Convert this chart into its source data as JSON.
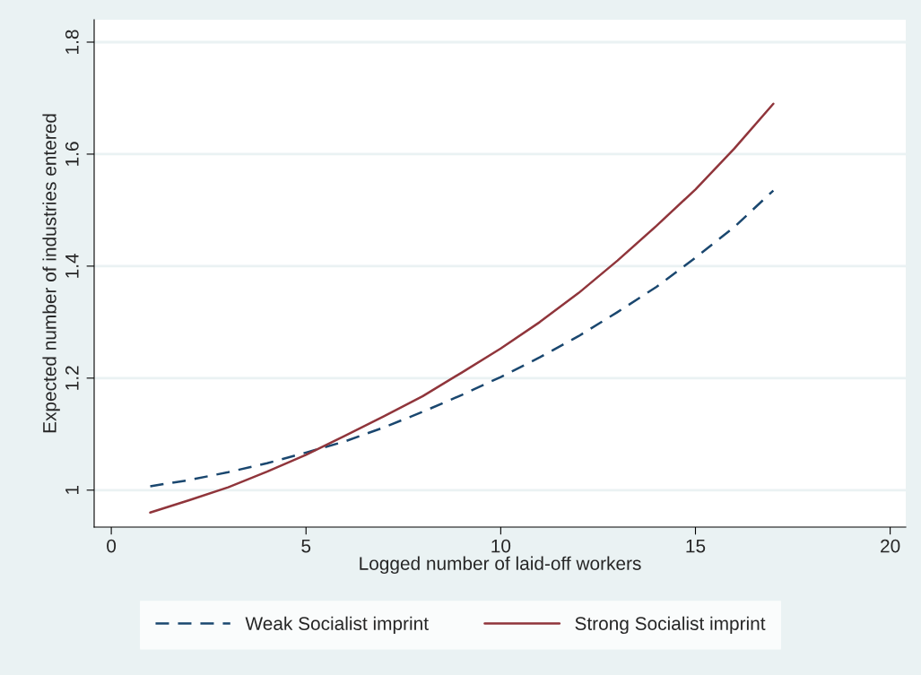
{
  "chart_data": {
    "type": "line",
    "xlabel": "Logged number of laid-off workers",
    "ylabel": "Expected number of industries entered",
    "xlim": [
      -0.44,
      20.4
    ],
    "xticks": [
      0,
      5,
      10,
      15,
      20
    ],
    "ylim": [
      0.934,
      1.84
    ],
    "yticks": [
      1,
      1.2,
      1.4,
      1.6,
      1.8
    ],
    "grid": "y",
    "legend": "bottom",
    "marker": "none",
    "series": [
      {
        "name": "Weak Socialist imprint",
        "color": "#1a476f",
        "line_style": "dashed",
        "x": [
          1,
          2,
          3,
          4,
          5,
          6,
          7,
          8,
          9,
          10,
          11,
          12,
          13,
          14,
          15,
          16,
          17
        ],
        "values": [
          1.007,
          1.018,
          1.032,
          1.048,
          1.067,
          1.087,
          1.112,
          1.14,
          1.17,
          1.202,
          1.237,
          1.275,
          1.318,
          1.363,
          1.415,
          1.47,
          1.535
        ]
      },
      {
        "name": "Strong Socialist imprint",
        "color": "#90353b",
        "line_style": "solid",
        "x": [
          1,
          2,
          3,
          4,
          5,
          6,
          7,
          8,
          9,
          10,
          11,
          12,
          13,
          14,
          15,
          16,
          17
        ],
        "values": [
          0.96,
          0.982,
          1.005,
          1.033,
          1.063,
          1.097,
          1.132,
          1.168,
          1.21,
          1.253,
          1.3,
          1.352,
          1.41,
          1.472,
          1.537,
          1.61,
          1.69
        ]
      }
    ]
  }
}
